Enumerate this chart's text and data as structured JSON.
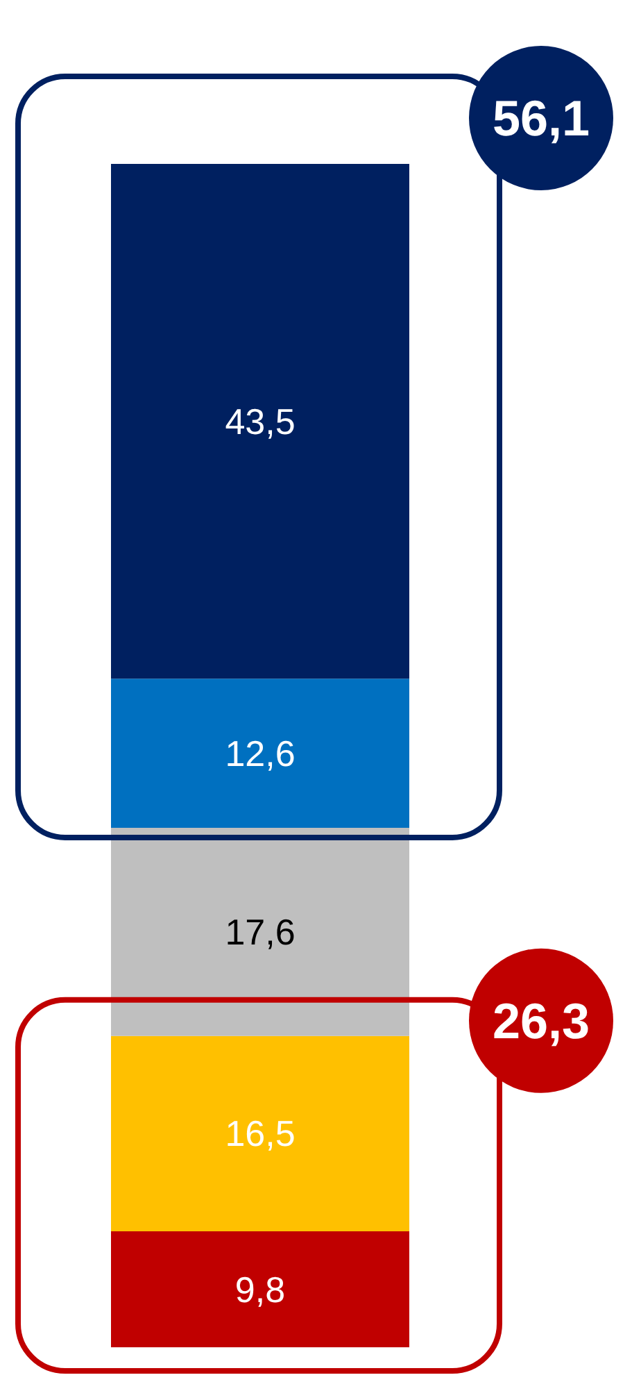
{
  "chart_data": {
    "type": "bar",
    "stacked": true,
    "categories": [
      null
    ],
    "ylim": [
      0,
      100
    ],
    "legend": false,
    "grid": false,
    "series": [
      {
        "color": "#c00000",
        "values": [
          9.8
        ],
        "value_labels": [
          "9,8"
        ]
      },
      {
        "color": "#ffc000",
        "values": [
          16.5
        ],
        "value_labels": [
          "16,5"
        ]
      },
      {
        "color": "#bfbfbf",
        "values": [
          17.6
        ],
        "value_labels": [
          "17,6"
        ]
      },
      {
        "color": "#0070c0",
        "values": [
          12.6
        ],
        "value_labels": [
          "12,6"
        ]
      },
      {
        "color": "#002060",
        "values": [
          43.5
        ],
        "value_labels": [
          "43,5"
        ]
      }
    ],
    "annotations": [
      "56,1",
      "26,3"
    ]
  }
}
